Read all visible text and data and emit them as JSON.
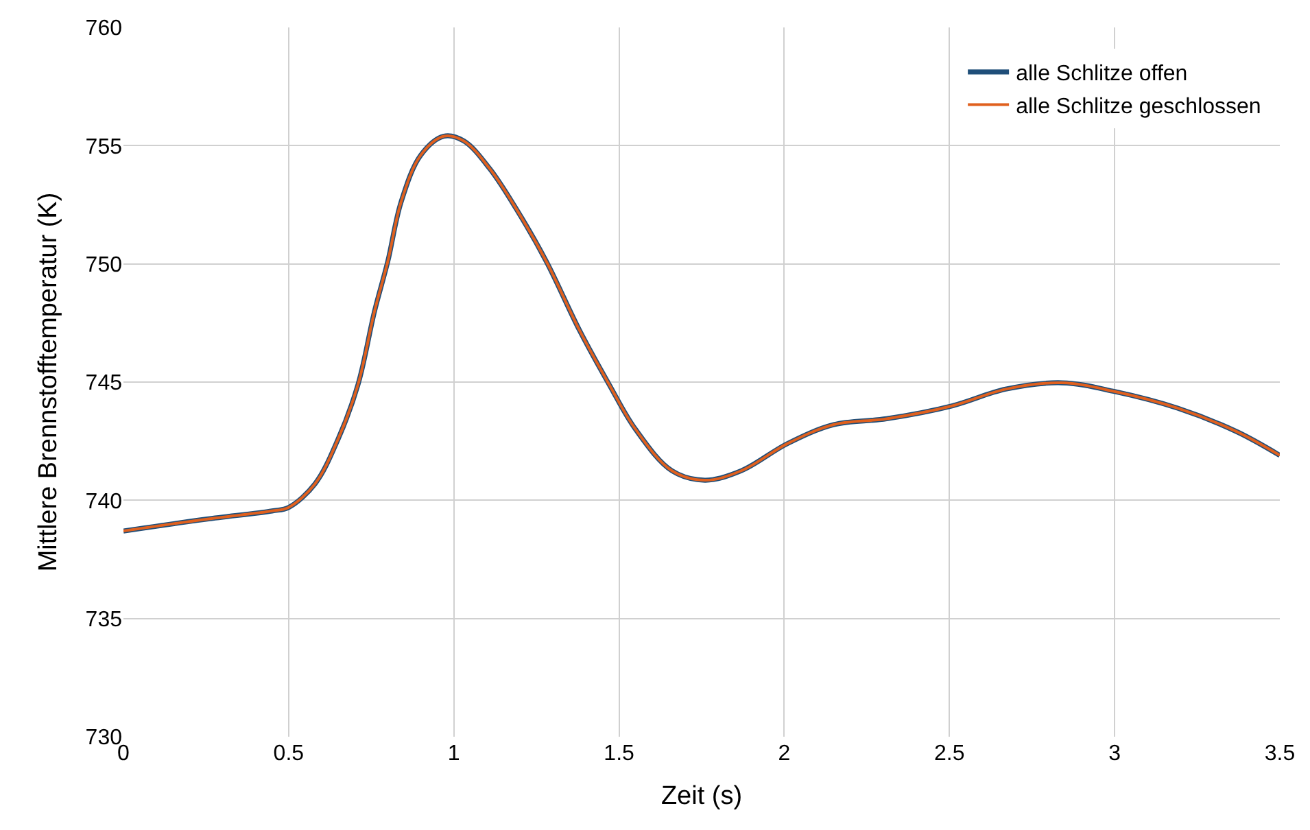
{
  "chart_data": {
    "type": "line",
    "xlabel": "Zeit (s)",
    "ylabel": "Mittlere Brennstofftemperatur (K)",
    "x": [
      0,
      0.25,
      0.45,
      0.5,
      0.58,
      0.65,
      0.71,
      0.76,
      0.8,
      0.84,
      0.9,
      0.97,
      1.03,
      1.11,
      1.19,
      1.28,
      1.38,
      1.47,
      1.55,
      1.66,
      1.76,
      1.87,
      2.01,
      2.15,
      2.31,
      2.51,
      2.67,
      2.84,
      3.0,
      3.19,
      3.37,
      3.5
    ],
    "series": [
      {
        "name": "alle Schlitze offen",
        "color": "#1f4e79",
        "values": [
          738.7,
          739.2,
          739.55,
          739.7,
          740.7,
          742.6,
          744.9,
          748.0,
          750.1,
          752.6,
          754.6,
          755.4,
          755.2,
          754.0,
          752.3,
          750.1,
          747.2,
          744.9,
          743.0,
          741.25,
          740.85,
          741.25,
          742.4,
          743.2,
          743.45,
          744.0,
          744.7,
          744.97,
          744.6,
          743.9,
          742.9,
          741.9
        ]
      },
      {
        "name": "alle Schlitze geschlossen",
        "color": "#e0601e",
        "values": [
          738.7,
          739.2,
          739.55,
          739.7,
          740.7,
          742.6,
          744.9,
          748.0,
          750.1,
          752.6,
          754.6,
          755.4,
          755.2,
          754.0,
          752.3,
          750.1,
          747.2,
          744.9,
          743.0,
          741.25,
          740.85,
          741.25,
          742.4,
          743.2,
          743.45,
          744.0,
          744.7,
          744.97,
          744.6,
          743.9,
          742.9,
          741.9
        ]
      }
    ],
    "xlim": [
      0,
      3.5
    ],
    "xticks": [
      0,
      0.5,
      1,
      1.5,
      2,
      2.5,
      3,
      3.5
    ],
    "ylim": [
      730,
      760
    ],
    "yticks": [
      730,
      735,
      740,
      745,
      750,
      755,
      760
    ],
    "grid": true,
    "legend": "top right",
    "marker": "none",
    "line_style": "solid"
  }
}
